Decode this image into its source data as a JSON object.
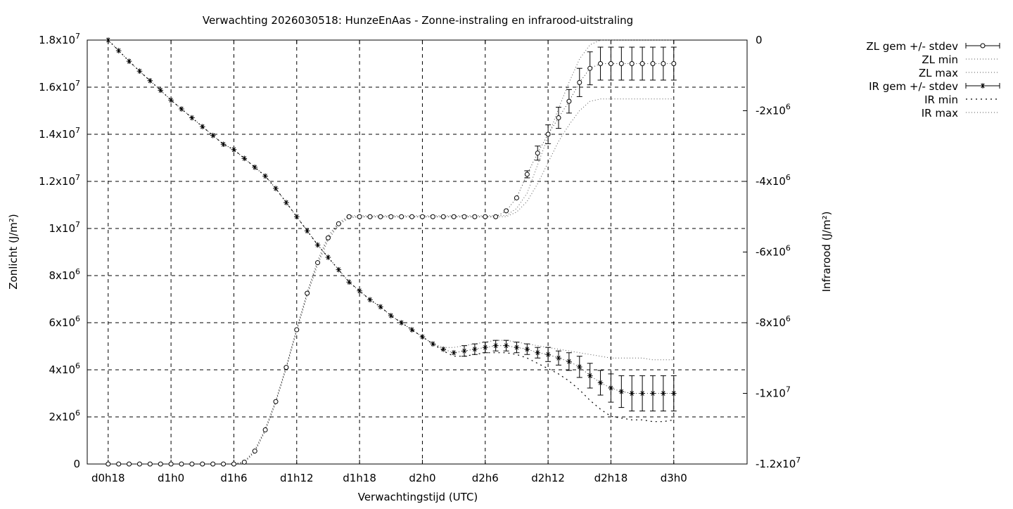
{
  "chart_data": {
    "type": "line",
    "title": "Verwachting 2026030518: HunzeEnAas - Zonne-instraling en infrarood-uitstraling",
    "xlabel": "Verwachtingstijd (UTC)",
    "ylabel_left": "Zonlicht (J/m²)",
    "ylabel_right": "Infrarood (J/m²)",
    "x_unit": "forecast hour (d0h18 = 18)",
    "xlim": [
      16,
      79
    ],
    "ylim_left": [
      0,
      18000000
    ],
    "ylim_right": [
      -12000000,
      0
    ],
    "grid": true,
    "legend_position": "right, outside plot",
    "x_ticks": [
      {
        "x": 18,
        "label": "d0h18"
      },
      {
        "x": 24,
        "label": "d1h0"
      },
      {
        "x": 30,
        "label": "d1h6"
      },
      {
        "x": 36,
        "label": "d1h12"
      },
      {
        "x": 42,
        "label": "d1h18"
      },
      {
        "x": 48,
        "label": "d2h0"
      },
      {
        "x": 54,
        "label": "d2h6"
      },
      {
        "x": 60,
        "label": "d2h12"
      },
      {
        "x": 66,
        "label": "d2h18"
      },
      {
        "x": 72,
        "label": "d3h0"
      }
    ],
    "y_ticks_left": [
      {
        "v": 0,
        "base": "0",
        "exp": ""
      },
      {
        "v": 2000000,
        "base": "2x10",
        "exp": "6"
      },
      {
        "v": 4000000,
        "base": "4x10",
        "exp": "6"
      },
      {
        "v": 6000000,
        "base": "6x10",
        "exp": "6"
      },
      {
        "v": 8000000,
        "base": "8x10",
        "exp": "6"
      },
      {
        "v": 10000000,
        "base": "1x10",
        "exp": "7"
      },
      {
        "v": 12000000,
        "base": "1.2x10",
        "exp": "7"
      },
      {
        "v": 14000000,
        "base": "1.4x10",
        "exp": "7"
      },
      {
        "v": 16000000,
        "base": "1.6x10",
        "exp": "7"
      },
      {
        "v": 18000000,
        "base": "1.8x10",
        "exp": "7"
      }
    ],
    "y_ticks_right": [
      {
        "v": 0,
        "base": "0",
        "exp": ""
      },
      {
        "v": -2000000,
        "base": "-2x10",
        "exp": "6"
      },
      {
        "v": -4000000,
        "base": "-4x10",
        "exp": "6"
      },
      {
        "v": -6000000,
        "base": "-6x10",
        "exp": "6"
      },
      {
        "v": -8000000,
        "base": "-8x10",
        "exp": "6"
      },
      {
        "v": -10000000,
        "base": "-1x10",
        "exp": "7"
      },
      {
        "v": -12000000,
        "base": "-1.2x10",
        "exp": "7"
      }
    ],
    "legend": [
      {
        "label": "ZL gem +/- stdev"
      },
      {
        "label": "ZL min"
      },
      {
        "label": "ZL max"
      },
      {
        "label": "IR gem +/- stdev"
      },
      {
        "label": "IR min"
      },
      {
        "label": "IR max"
      }
    ],
    "series": [
      {
        "name": "ZL gem +/- stdev",
        "axis": "left",
        "x": [
          18,
          19,
          20,
          21,
          22,
          23,
          24,
          25,
          26,
          27,
          28,
          29,
          30,
          31,
          32,
          33,
          34,
          35,
          36,
          37,
          38,
          39,
          40,
          41,
          42,
          43,
          44,
          45,
          46,
          47,
          48,
          49,
          50,
          51,
          52,
          53,
          54,
          55,
          56,
          57,
          58,
          59,
          60,
          61,
          62,
          63,
          64,
          65,
          66,
          67,
          68,
          69,
          70,
          71,
          72
        ],
        "y": [
          0,
          0,
          0,
          0,
          0,
          0,
          0,
          0,
          0,
          0,
          0,
          0,
          0,
          80000,
          550000,
          1450000,
          2650000,
          4100000,
          5700000,
          7250000,
          8550000,
          9600000,
          10200000,
          10500000,
          10500000,
          10500000,
          10500000,
          10500000,
          10500000,
          10500000,
          10500000,
          10500000,
          10500000,
          10500000,
          10500000,
          10500000,
          10500000,
          10500000,
          10750000,
          11300000,
          12300000,
          13200000,
          14000000,
          14700000,
          15400000,
          16200000,
          16800000,
          17000000,
          17000000,
          17000000,
          17000000,
          17000000,
          17000000,
          17000000,
          17000000
        ],
        "stdev": [
          0,
          0,
          0,
          0,
          0,
          0,
          0,
          0,
          0,
          0,
          0,
          0,
          0,
          0,
          0,
          0,
          0,
          0,
          0,
          0,
          0,
          0,
          0,
          0,
          0,
          0,
          0,
          0,
          0,
          0,
          0,
          0,
          0,
          0,
          0,
          0,
          0,
          0,
          0,
          0,
          150000,
          300000,
          400000,
          450000,
          500000,
          600000,
          700000,
          700000,
          700000,
          700000,
          700000,
          700000,
          700000,
          700000,
          700000
        ]
      },
      {
        "name": "ZL min",
        "axis": "left",
        "x": [
          18,
          30,
          31,
          32,
          33,
          34,
          35,
          36,
          37,
          38,
          39,
          40,
          41,
          42,
          56,
          57,
          58,
          59,
          60,
          61,
          62,
          63,
          64,
          65,
          66,
          68,
          72
        ],
        "y": [
          0,
          0,
          60000,
          500000,
          1400000,
          2600000,
          4050000,
          5650000,
          7150000,
          8450000,
          9500000,
          10150000,
          10450000,
          10500000,
          10500000,
          10700000,
          11150000,
          11900000,
          12800000,
          13700000,
          14400000,
          15000000,
          15400000,
          15500000,
          15500000,
          15500000,
          15500000
        ]
      },
      {
        "name": "ZL max",
        "axis": "left",
        "x": [
          18,
          30,
          31,
          32,
          33,
          34,
          35,
          36,
          37,
          38,
          39,
          40,
          41,
          42,
          56,
          57,
          58,
          59,
          60,
          61,
          62,
          63,
          64,
          65,
          66,
          68,
          72
        ],
        "y": [
          0,
          0,
          100000,
          600000,
          1500000,
          2700000,
          4150000,
          5750000,
          7300000,
          8650000,
          9700000,
          10250000,
          10550000,
          10550000,
          10550000,
          10850000,
          11500000,
          12700000,
          13900000,
          15100000,
          16200000,
          17200000,
          17800000,
          18000000,
          18000000,
          18000000,
          18000000
        ]
      },
      {
        "name": "IR gem +/- stdev",
        "axis": "right",
        "x": [
          18,
          19,
          20,
          21,
          22,
          23,
          24,
          25,
          26,
          27,
          28,
          29,
          30,
          31,
          32,
          33,
          34,
          35,
          36,
          37,
          38,
          39,
          40,
          41,
          42,
          43,
          44,
          45,
          46,
          47,
          48,
          49,
          50,
          51,
          52,
          53,
          54,
          55,
          56,
          57,
          58,
          59,
          60,
          61,
          62,
          63,
          64,
          65,
          66,
          67,
          68,
          69,
          70,
          71,
          72
        ],
        "y": [
          0,
          -300000,
          -600000,
          -880000,
          -1150000,
          -1420000,
          -1700000,
          -1950000,
          -2200000,
          -2450000,
          -2700000,
          -2950000,
          -3100000,
          -3350000,
          -3600000,
          -3850000,
          -4200000,
          -4600000,
          -5000000,
          -5400000,
          -5800000,
          -6150000,
          -6500000,
          -6850000,
          -7100000,
          -7350000,
          -7550000,
          -7800000,
          -8000000,
          -8200000,
          -8400000,
          -8600000,
          -8750000,
          -8850000,
          -8800000,
          -8750000,
          -8700000,
          -8650000,
          -8650000,
          -8700000,
          -8750000,
          -8850000,
          -8900000,
          -9000000,
          -9100000,
          -9250000,
          -9500000,
          -9700000,
          -9850000,
          -9950000,
          -10000000,
          -10000000,
          -10000000,
          -10000000,
          -10000000
        ],
        "stdev": [
          0,
          0,
          0,
          0,
          0,
          0,
          0,
          0,
          0,
          0,
          0,
          0,
          0,
          0,
          0,
          0,
          0,
          0,
          0,
          0,
          0,
          0,
          0,
          0,
          0,
          0,
          0,
          0,
          0,
          0,
          0,
          0,
          0,
          0,
          150000,
          150000,
          150000,
          150000,
          150000,
          150000,
          150000,
          150000,
          200000,
          200000,
          250000,
          300000,
          350000,
          350000,
          400000,
          450000,
          500000,
          500000,
          500000,
          500000,
          500000
        ]
      },
      {
        "name": "IR min",
        "axis": "right",
        "x": [
          18,
          19,
          20,
          21,
          22,
          23,
          24,
          25,
          26,
          27,
          28,
          29,
          30,
          31,
          32,
          33,
          34,
          35,
          36,
          37,
          38,
          39,
          40,
          41,
          42,
          43,
          44,
          45,
          46,
          47,
          48,
          49,
          50,
          51,
          52,
          53,
          54,
          55,
          56,
          57,
          58,
          59,
          60,
          61,
          62,
          63,
          64,
          65,
          66,
          67,
          68,
          69,
          70,
          71,
          72
        ],
        "y": [
          0,
          -300000,
          -600000,
          -880000,
          -1150000,
          -1420000,
          -1700000,
          -1950000,
          -2200000,
          -2450000,
          -2700000,
          -2950000,
          -3100000,
          -3350000,
          -3600000,
          -3850000,
          -4200000,
          -4600000,
          -5000000,
          -5400000,
          -5800000,
          -6150000,
          -6500000,
          -6850000,
          -7100000,
          -7350000,
          -7550000,
          -7800000,
          -8000000,
          -8200000,
          -8400000,
          -8600000,
          -8800000,
          -8950000,
          -8950000,
          -8900000,
          -8850000,
          -8850000,
          -8850000,
          -8900000,
          -9000000,
          -9150000,
          -9300000,
          -9450000,
          -9650000,
          -9900000,
          -10200000,
          -10450000,
          -10650000,
          -10700000,
          -10750000,
          -10750000,
          -10800000,
          -10800000,
          -10750000
        ]
      },
      {
        "name": "IR max",
        "axis": "right",
        "x": [
          18,
          19,
          20,
          21,
          22,
          23,
          24,
          25,
          26,
          27,
          28,
          29,
          30,
          31,
          32,
          33,
          34,
          35,
          36,
          37,
          38,
          39,
          40,
          41,
          42,
          43,
          44,
          45,
          46,
          47,
          48,
          49,
          50,
          51,
          52,
          53,
          54,
          55,
          56,
          57,
          58,
          59,
          60,
          61,
          62,
          63,
          64,
          65,
          66,
          67,
          68,
          69,
          70,
          71,
          72
        ],
        "y": [
          0,
          -300000,
          -600000,
          -880000,
          -1150000,
          -1420000,
          -1700000,
          -1950000,
          -2200000,
          -2450000,
          -2700000,
          -2950000,
          -3100000,
          -3350000,
          -3600000,
          -3850000,
          -4200000,
          -4600000,
          -5000000,
          -5400000,
          -5800000,
          -6150000,
          -6500000,
          -6850000,
          -7100000,
          -7350000,
          -7550000,
          -7800000,
          -8000000,
          -8200000,
          -8400000,
          -8600000,
          -8700000,
          -8700000,
          -8650000,
          -8600000,
          -8550000,
          -8500000,
          -8500000,
          -8550000,
          -8600000,
          -8650000,
          -8700000,
          -8750000,
          -8800000,
          -8850000,
          -8900000,
          -8950000,
          -9000000,
          -9000000,
          -9000000,
          -9000000,
          -9050000,
          -9050000,
          -9050000
        ]
      }
    ]
  }
}
